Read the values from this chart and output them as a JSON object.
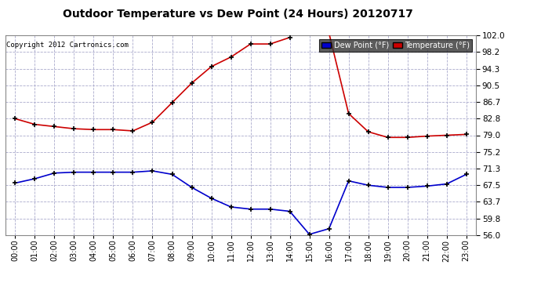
{
  "title": "Outdoor Temperature vs Dew Point (24 Hours) 20120717",
  "copyright": "Copyright 2012 Cartronics.com",
  "background_color": "#ffffff",
  "plot_bg_color": "#ffffff",
  "grid_color": "#aaaacc",
  "ylim": [
    56.0,
    102.0
  ],
  "yticks": [
    56.0,
    59.8,
    63.7,
    67.5,
    71.3,
    75.2,
    79.0,
    82.8,
    86.7,
    90.5,
    94.3,
    98.2,
    102.0
  ],
  "hours": [
    "00:00",
    "01:00",
    "02:00",
    "03:00",
    "04:00",
    "05:00",
    "06:00",
    "07:00",
    "08:00",
    "09:00",
    "10:00",
    "11:00",
    "12:00",
    "13:00",
    "14:00",
    "15:00",
    "16:00",
    "17:00",
    "18:00",
    "19:00",
    "20:00",
    "21:00",
    "22:00",
    "23:00"
  ],
  "temperature": [
    82.8,
    81.5,
    81.0,
    80.5,
    80.3,
    80.3,
    80.0,
    82.0,
    86.5,
    91.0,
    94.8,
    97.0,
    100.0,
    100.0,
    101.5,
    null,
    102.5,
    84.0,
    79.8,
    78.5,
    78.5,
    78.8,
    79.0,
    79.2
  ],
  "dewpoint": [
    68.0,
    69.0,
    70.3,
    70.5,
    70.5,
    70.5,
    70.5,
    70.8,
    70.0,
    67.0,
    64.5,
    62.5,
    62.0,
    62.0,
    61.5,
    56.2,
    57.5,
    68.5,
    67.5,
    67.0,
    67.0,
    67.3,
    67.8,
    70.0
  ],
  "temp_color": "#cc0000",
  "dew_color": "#0000cc",
  "marker_color": "black",
  "legend_dew_bg": "#0000cc",
  "legend_temp_bg": "#cc0000",
  "legend_text_color": "white",
  "legend_frame_bg": "#333333"
}
